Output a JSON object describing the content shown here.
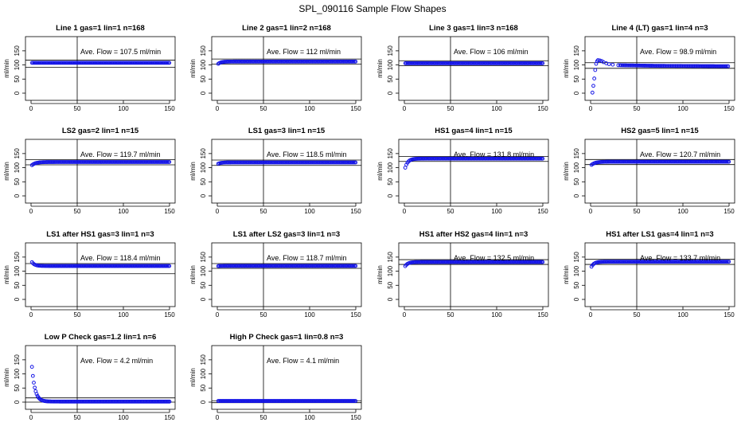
{
  "figure_title": "SPL_090116  Sample Flow Shapes",
  "colors": {
    "points": "#1515e6",
    "axis": "#000000",
    "background": "#ffffff"
  },
  "chart_data": [
    {
      "type": "scatter",
      "title": "Line 1 gas=1 lin=1 n=168",
      "ylabel": "ml/min",
      "xlim": [
        0,
        150
      ],
      "ylim": [
        0,
        175
      ],
      "xticks": [
        0,
        50,
        100,
        150
      ],
      "yticks": [
        0,
        50,
        100,
        150
      ],
      "vline_x": 50,
      "hlines": [
        117,
        92
      ],
      "annotation": "Ave. Flow =  107.5  ml/min",
      "shape": {
        "base": 107.5,
        "start": 107.5,
        "tau": 1
      }
    },
    {
      "type": "scatter",
      "title": "Line 2 gas=1 lin=2 n=168",
      "ylabel": "ml/min",
      "xlim": [
        0,
        150
      ],
      "ylim": [
        0,
        175
      ],
      "xticks": [
        0,
        50,
        100,
        150
      ],
      "yticks": [
        0,
        50,
        100,
        150
      ],
      "vline_x": 50,
      "hlines": [
        121,
        103
      ],
      "annotation": "Ave. Flow =  112  ml/min",
      "shape": {
        "base": 112,
        "start": 104,
        "tau": 3
      }
    },
    {
      "type": "scatter",
      "title": "Line 3 gas=1 lin=3 n=168",
      "ylabel": "ml/min",
      "xlim": [
        0,
        150
      ],
      "ylim": [
        0,
        175
      ],
      "xticks": [
        0,
        50,
        100,
        150
      ],
      "yticks": [
        0,
        50,
        100,
        150
      ],
      "vline_x": 50,
      "hlines": [
        115,
        97
      ],
      "annotation": "Ave. Flow =  106  ml/min",
      "shape": {
        "base": 106,
        "start": 106,
        "tau": 1
      }
    },
    {
      "type": "scatter",
      "title": "Line 4 (LT) gas=1 lin=4 n=3",
      "ylabel": "ml/min",
      "xlim": [
        0,
        150
      ],
      "ylim": [
        0,
        175
      ],
      "xticks": [
        0,
        50,
        100,
        150
      ],
      "yticks": [
        0,
        50,
        100,
        150
      ],
      "vline_x": 50,
      "hlines": [
        108,
        88
      ],
      "annotation": "Ave. Flow =  98.9  ml/min",
      "shape": {
        "base": 97,
        "start": 0,
        "tau": 0,
        "overshoot": true
      }
    },
    {
      "type": "scatter",
      "title": "LS2 gas=2 lin=1 n=15",
      "ylabel": "ml/min",
      "xlim": [
        0,
        150
      ],
      "ylim": [
        0,
        175
      ],
      "xticks": [
        0,
        50,
        100,
        150
      ],
      "yticks": [
        0,
        50,
        100,
        150
      ],
      "vline_x": 50,
      "hlines": [
        128,
        110
      ],
      "annotation": "Ave. Flow =  119.7  ml/min",
      "shape": {
        "base": 120,
        "start": 109,
        "tau": 4
      }
    },
    {
      "type": "scatter",
      "title": "LS1 gas=3 lin=1 n=15",
      "ylabel": "ml/min",
      "xlim": [
        0,
        150
      ],
      "ylim": [
        0,
        175
      ],
      "xticks": [
        0,
        50,
        100,
        150
      ],
      "yticks": [
        0,
        50,
        100,
        150
      ],
      "vline_x": 50,
      "hlines": [
        127,
        108
      ],
      "annotation": "Ave. Flow =  118.5  ml/min",
      "shape": {
        "base": 118.5,
        "start": 114,
        "tau": 3
      }
    },
    {
      "type": "scatter",
      "title": "HS1 gas=4 lin=1 n=15",
      "ylabel": "ml/min",
      "xlim": [
        0,
        150
      ],
      "ylim": [
        0,
        175
      ],
      "xticks": [
        0,
        50,
        100,
        150
      ],
      "yticks": [
        0,
        50,
        100,
        150
      ],
      "vline_x": 50,
      "hlines": [
        140,
        122
      ],
      "annotation": "Ave. Flow =  131.8  ml/min",
      "shape": {
        "base": 132,
        "start": 100,
        "tau": 3
      }
    },
    {
      "type": "scatter",
      "title": "HS2 gas=5 lin=1 n=15",
      "ylabel": "ml/min",
      "xlim": [
        0,
        150
      ],
      "ylim": [
        0,
        175
      ],
      "xticks": [
        0,
        50,
        100,
        150
      ],
      "yticks": [
        0,
        50,
        100,
        150
      ],
      "vline_x": 50,
      "hlines": [
        129,
        111
      ],
      "annotation": "Ave. Flow =  120.7  ml/min",
      "shape": {
        "base": 121,
        "start": 110,
        "tau": 4
      }
    },
    {
      "type": "scatter",
      "title": "LS1 after HS1 gas=3 lin=1 n=3",
      "ylabel": "ml/min",
      "xlim": [
        0,
        150
      ],
      "ylim": [
        0,
        175
      ],
      "xticks": [
        0,
        50,
        100,
        150
      ],
      "yticks": [
        0,
        50,
        100,
        150
      ],
      "vline_x": 50,
      "hlines": [
        127,
        91
      ],
      "annotation": "Ave. Flow =  118.4  ml/min",
      "shape": {
        "base": 118.4,
        "start": 132,
        "tau": 3
      }
    },
    {
      "type": "scatter",
      "title": "LS1 after LS2 gas=3 lin=1 n=3",
      "ylabel": "ml/min",
      "xlim": [
        0,
        150
      ],
      "ylim": [
        0,
        175
      ],
      "xticks": [
        0,
        50,
        100,
        150
      ],
      "yticks": [
        0,
        50,
        100,
        150
      ],
      "vline_x": 50,
      "hlines": [
        127,
        110
      ],
      "annotation": "Ave. Flow =  118.7  ml/min",
      "shape": {
        "base": 118.7,
        "start": 118,
        "tau": 2
      }
    },
    {
      "type": "scatter",
      "title": "HS1 after HS2 gas=4 lin=1 n=3",
      "ylabel": "ml/min",
      "xlim": [
        0,
        150
      ],
      "ylim": [
        0,
        175
      ],
      "xticks": [
        0,
        50,
        100,
        150
      ],
      "yticks": [
        0,
        50,
        100,
        150
      ],
      "vline_x": 50,
      "hlines": [
        141,
        124
      ],
      "annotation": "Ave. Flow =  132.5  ml/min",
      "shape": {
        "base": 132.5,
        "start": 118,
        "tau": 3
      }
    },
    {
      "type": "scatter",
      "title": "HS1 after LS1 gas=4 lin=1 n=3",
      "ylabel": "ml/min",
      "xlim": [
        0,
        150
      ],
      "ylim": [
        0,
        175
      ],
      "xticks": [
        0,
        50,
        100,
        150
      ],
      "yticks": [
        0,
        50,
        100,
        150
      ],
      "vline_x": 50,
      "hlines": [
        142,
        124
      ],
      "annotation": "Ave. Flow =  133.7  ml/min",
      "shape": {
        "base": 133.7,
        "start": 116,
        "tau": 3
      }
    },
    {
      "type": "scatter",
      "title": "Low P Check gas=1.2 lin=1 n=6",
      "ylabel": "ml/min",
      "xlim": [
        0,
        150
      ],
      "ylim": [
        0,
        175
      ],
      "xticks": [
        0,
        50,
        100,
        150
      ],
      "yticks": [
        0,
        50,
        100,
        150
      ],
      "vline_x": 50,
      "hlines": [
        15,
        0
      ],
      "annotation": "Ave. Flow =  4.2  ml/min",
      "shape": {
        "base": 2,
        "start": 125,
        "tau": 3.3
      }
    },
    {
      "type": "scatter",
      "title": "High P Check gas=1 lin=0.8 n=3",
      "ylabel": "ml/min",
      "xlim": [
        0,
        150
      ],
      "ylim": [
        0,
        175
      ],
      "xticks": [
        0,
        50,
        100,
        150
      ],
      "yticks": [
        0,
        50,
        100,
        150
      ],
      "vline_x": 50,
      "hlines": [
        5,
        -2
      ],
      "annotation": "Ave. Flow =  4.1  ml/min",
      "shape": {
        "base": 4.1,
        "start": 4.1,
        "tau": 1
      }
    }
  ]
}
